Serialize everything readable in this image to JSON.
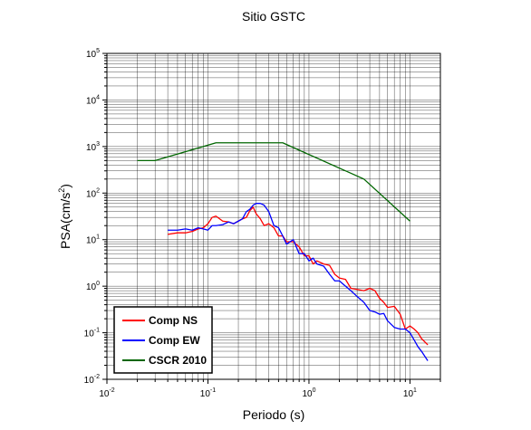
{
  "chart_data": {
    "type": "line",
    "title": "Sitio GSTC",
    "xlabel": "Periodo (s)",
    "ylabel": "PSA(cm/s²)",
    "ylabel_base": "PSA(cm/s",
    "ylabel_exp": "2",
    "ylabel_close": ")",
    "x_scale": "log",
    "y_scale": "log",
    "xlim": [
      0.01,
      20
    ],
    "ylim": [
      0.01,
      100000
    ],
    "grid": true,
    "legend_position": "bottom-left",
    "x_ticks": [
      {
        "base": "10",
        "exp": "-2",
        "value": 0.01
      },
      {
        "base": "10",
        "exp": "-1",
        "value": 0.1
      },
      {
        "base": "10",
        "exp": "0",
        "value": 1
      },
      {
        "base": "10",
        "exp": "1",
        "value": 10
      }
    ],
    "y_ticks": [
      {
        "base": "10",
        "exp": "-2",
        "value": 0.01
      },
      {
        "base": "10",
        "exp": "-1",
        "value": 0.1
      },
      {
        "base": "10",
        "exp": "0",
        "value": 1
      },
      {
        "base": "10",
        "exp": "1",
        "value": 10
      },
      {
        "base": "10",
        "exp": "2",
        "value": 100
      },
      {
        "base": "10",
        "exp": "3",
        "value": 1000
      },
      {
        "base": "10",
        "exp": "4",
        "value": 10000
      },
      {
        "base": "10",
        "exp": "5",
        "value": 100000
      }
    ],
    "series": [
      {
        "name": "Comp NS",
        "color": "#ff0000",
        "x": [
          0.04,
          0.05,
          0.06,
          0.07,
          0.08,
          0.09,
          0.1,
          0.11,
          0.12,
          0.14,
          0.16,
          0.18,
          0.2,
          0.22,
          0.24,
          0.26,
          0.28,
          0.3,
          0.33,
          0.36,
          0.4,
          0.45,
          0.5,
          0.55,
          0.6,
          0.7,
          0.8,
          0.9,
          1.0,
          1.1,
          1.2,
          1.4,
          1.6,
          1.8,
          2.0,
          2.3,
          2.6,
          3.0,
          3.5,
          4.0,
          4.5,
          5.0,
          5.5,
          6.0,
          7.0,
          8.0,
          9.0,
          10,
          11,
          12,
          13,
          15
        ],
        "y": [
          13,
          14,
          14,
          15,
          17,
          18,
          22,
          30,
          32,
          25,
          24,
          22,
          25,
          28,
          30,
          42,
          50,
          36,
          28,
          20,
          22,
          18,
          12,
          12,
          9,
          9,
          7,
          4.5,
          4.5,
          3,
          3.5,
          3,
          2.8,
          1.8,
          1.5,
          1.4,
          0.9,
          0.85,
          0.8,
          0.9,
          0.8,
          0.55,
          0.45,
          0.35,
          0.37,
          0.25,
          0.12,
          0.14,
          0.12,
          0.1,
          0.075,
          0.055
        ]
      },
      {
        "name": "Comp EW",
        "color": "#0000ff",
        "x": [
          0.04,
          0.05,
          0.06,
          0.07,
          0.08,
          0.09,
          0.1,
          0.11,
          0.12,
          0.14,
          0.16,
          0.18,
          0.2,
          0.22,
          0.24,
          0.26,
          0.28,
          0.3,
          0.33,
          0.36,
          0.4,
          0.45,
          0.5,
          0.55,
          0.6,
          0.7,
          0.8,
          0.9,
          1.0,
          1.1,
          1.2,
          1.4,
          1.6,
          1.8,
          2.0,
          2.3,
          2.6,
          3.0,
          3.5,
          4.0,
          4.5,
          5.0,
          5.5,
          6.0,
          7.0,
          8.0,
          9.0,
          10,
          11,
          12,
          13,
          15
        ],
        "y": [
          16,
          16,
          17,
          16,
          18,
          17,
          16,
          20,
          20,
          21,
          24,
          22,
          25,
          28,
          40,
          45,
          55,
          60,
          60,
          55,
          40,
          20,
          18,
          12,
          8,
          10,
          5,
          5,
          3.5,
          4,
          3,
          2.7,
          1.8,
          1.3,
          1.3,
          1.0,
          0.8,
          0.6,
          0.45,
          0.3,
          0.28,
          0.25,
          0.26,
          0.18,
          0.13,
          0.12,
          0.12,
          0.1,
          0.07,
          0.05,
          0.04,
          0.025
        ]
      },
      {
        "name": "CSCR 2010",
        "color": "#006600",
        "x": [
          0.02,
          0.03,
          0.12,
          0.55,
          3.5,
          10
        ],
        "y": [
          500,
          500,
          1200,
          1200,
          200,
          25
        ]
      }
    ]
  }
}
